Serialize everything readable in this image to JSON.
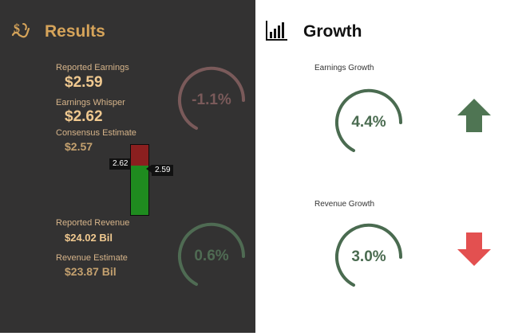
{
  "results": {
    "title": "Results",
    "icon": "money-hand-icon",
    "reported_earnings_label": "Reported Earnings",
    "reported_earnings_value": "$2.59",
    "earnings_whisper_label": "Earnings Whisper",
    "earnings_whisper_value": "$2.62",
    "consensus_estimate_label": "Consensus Estimate",
    "consensus_estimate_value": "$2.57",
    "earnings_surprise_pct": "-1.1%",
    "reported_revenue_label": "Reported Revenue",
    "reported_revenue_value": "$24.02 Bil",
    "revenue_estimate_label": "Revenue Estimate",
    "revenue_estimate_value": "$23.87 Bil",
    "revenue_surprise_pct": "0.6%",
    "bar_whisper_tag": "2.62",
    "bar_reported_tag": "2.59",
    "bar_fill_fraction_red": 0.29
  },
  "growth": {
    "title": "Growth",
    "icon": "bar-chart-icon",
    "earnings_growth_label": "Earnings Growth",
    "earnings_growth_value": "4.4%",
    "earnings_trend": "up",
    "revenue_growth_label": "Revenue Growth",
    "revenue_growth_value": "3.0%",
    "revenue_trend": "down"
  },
  "colors": {
    "panel_dark": "#333232",
    "gold": "#f0c990",
    "gold_muted": "#c4a16f",
    "ring_red": "#7a5a5a",
    "ring_green": "#4f6b53",
    "ring_green_dark": "#4a6b50",
    "arrow_up": "#4f7553",
    "arrow_down": "#e35050",
    "bar_red": "#8b1f1f",
    "bar_green": "#1f8b1f"
  }
}
